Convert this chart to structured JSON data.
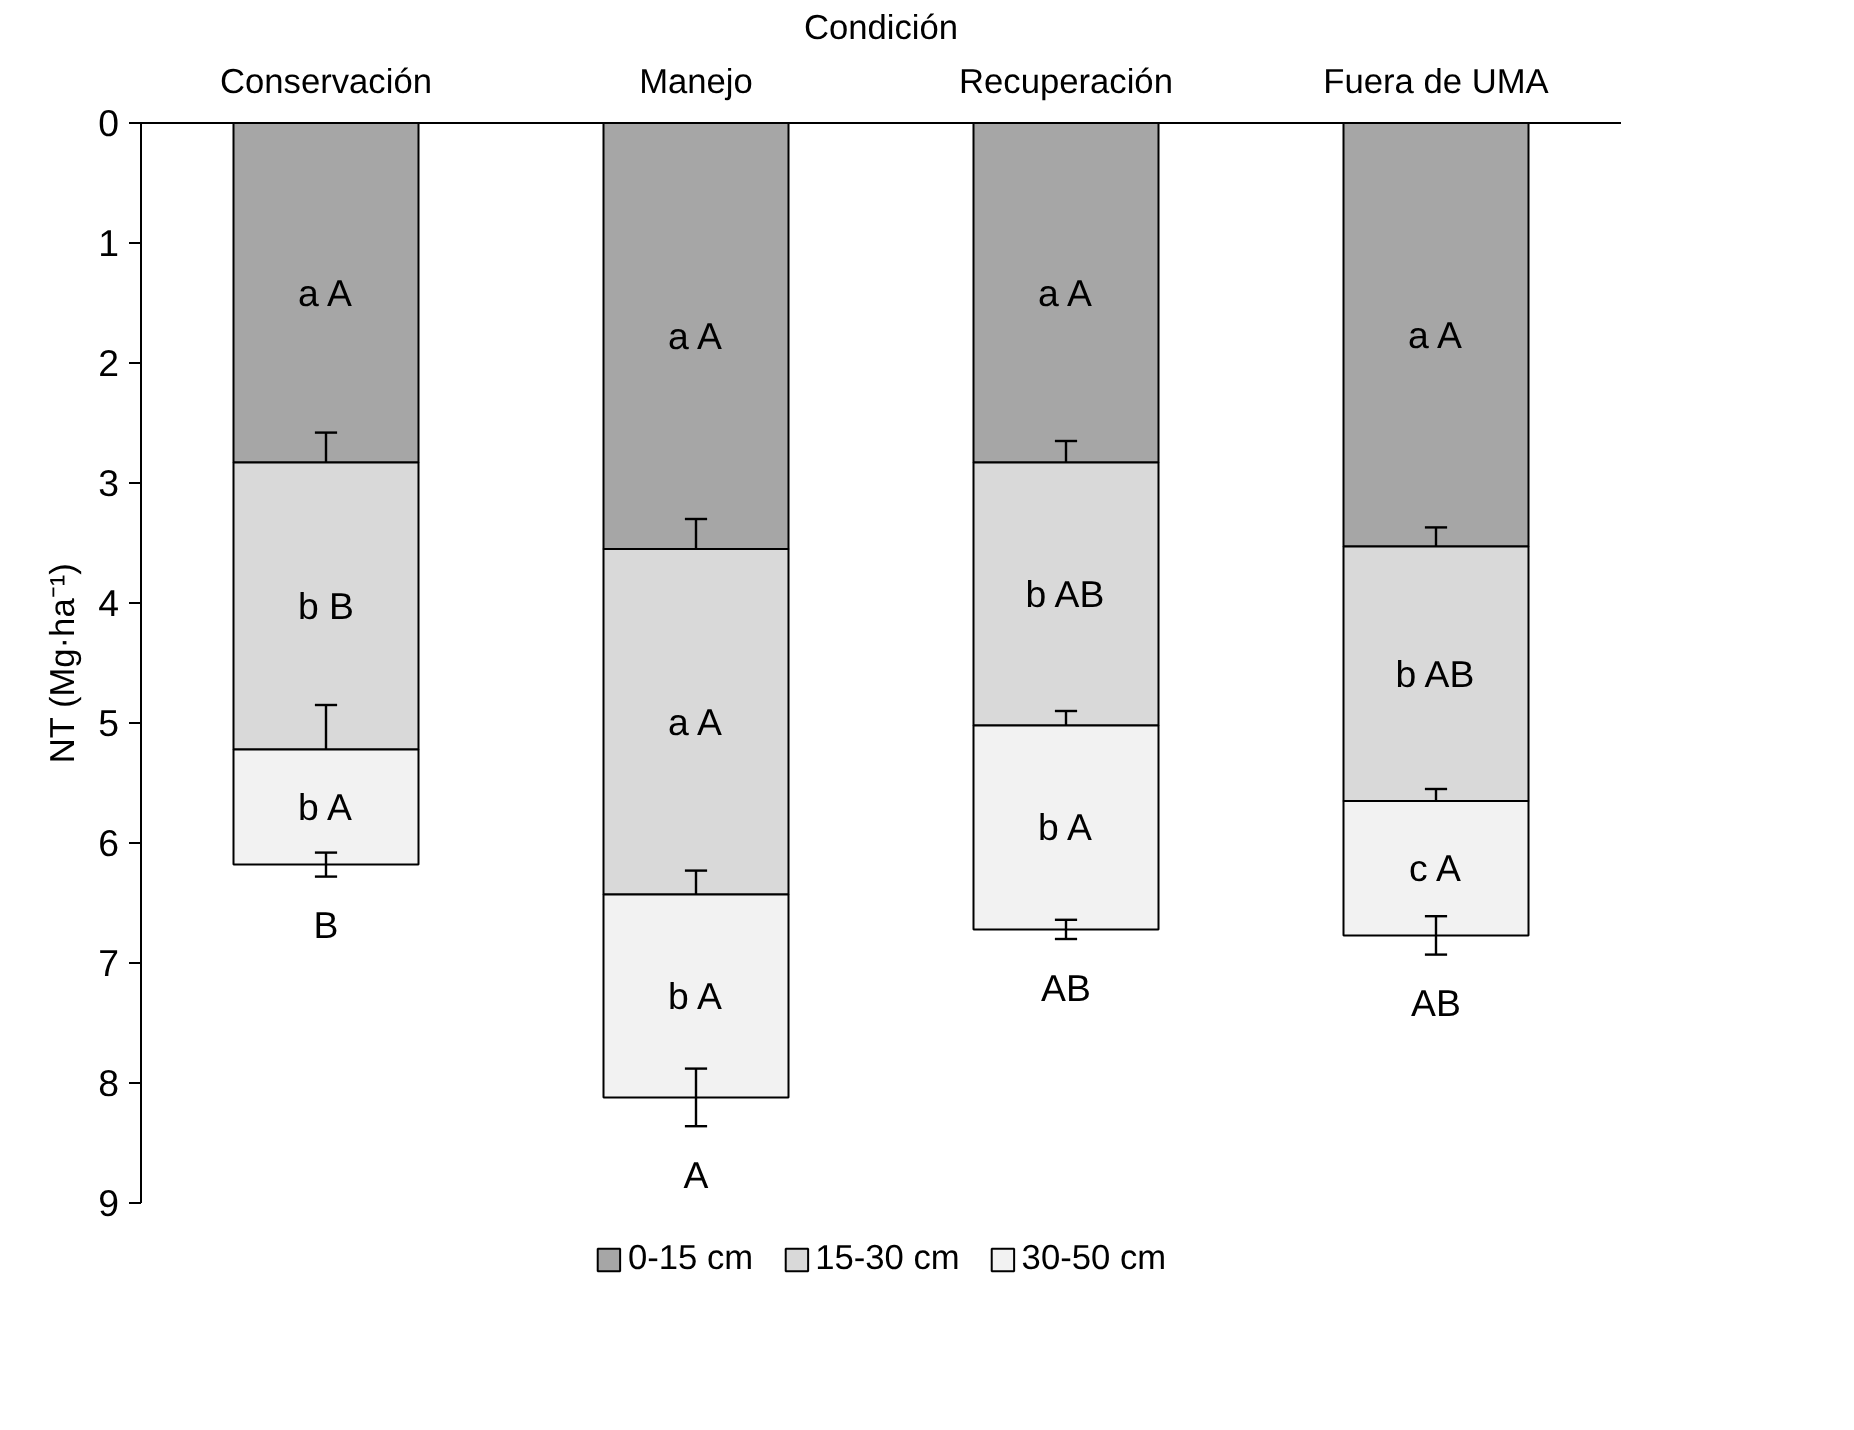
{
  "chart_data": {
    "type": "bar",
    "stacked": true,
    "xlabel": "Condición",
    "ylabel": "NT (Mg·ha⁻¹)",
    "categories": [
      "Conservación",
      "Manejo",
      "Recuperación",
      "Fuera de UMA"
    ],
    "series": [
      {
        "name": "0-15 cm",
        "color": "#a6a6a6",
        "values": [
          2.83,
          3.55,
          2.83,
          3.53
        ],
        "errors": [
          0.25,
          0.25,
          0.18,
          0.16
        ]
      },
      {
        "name": "15-30 cm",
        "color": "#d9d9d9",
        "values": [
          2.39,
          2.88,
          2.19,
          2.12
        ],
        "errors": [
          0.37,
          0.2,
          0.12,
          0.1
        ]
      },
      {
        "name": "30-50 cm",
        "color": "#f2f2f2",
        "values": [
          0.96,
          1.69,
          1.7,
          1.12
        ],
        "errors": [
          0.1,
          0.24,
          0.08,
          0.16
        ]
      }
    ],
    "ylim": [
      9,
      0
    ],
    "yticks": [
      0,
      1,
      2,
      3,
      4,
      5,
      6,
      7,
      8,
      9
    ],
    "grid": false,
    "legend": "bottom",
    "annotations": [
      "a A",
      "a A",
      "a A",
      "a A",
      "b B",
      "a A",
      "b AB",
      "b AB",
      "b A",
      "b A",
      "b A",
      "c A",
      "B",
      "A",
      "AB",
      "AB"
    ]
  }
}
